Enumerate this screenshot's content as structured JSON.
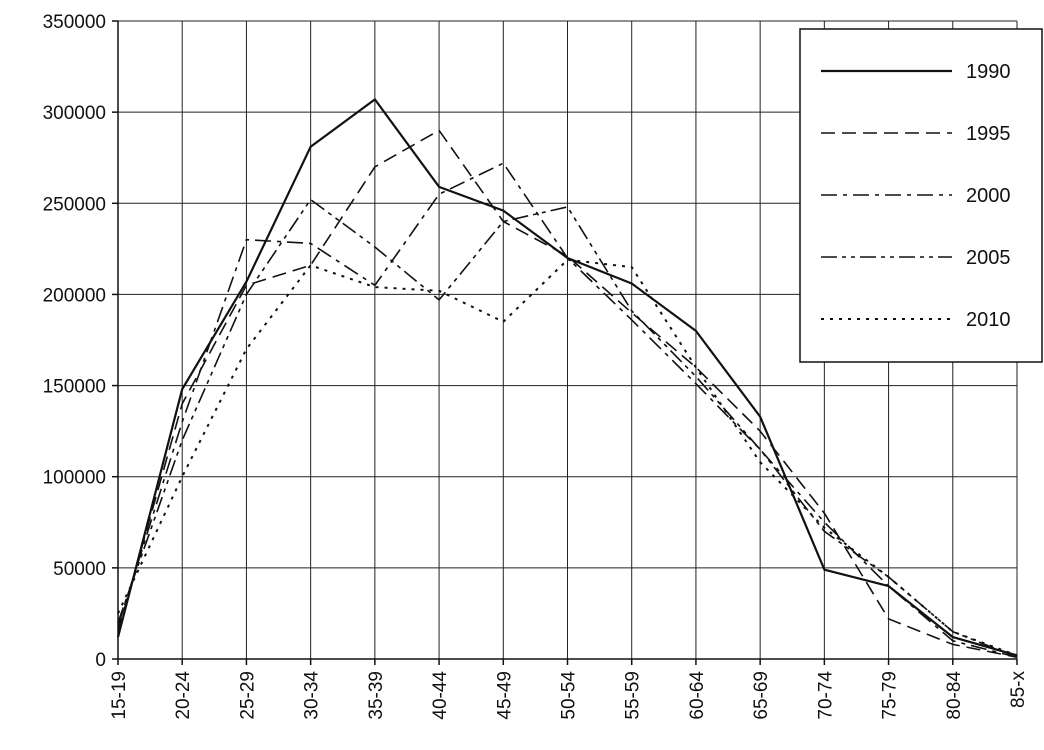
{
  "chart_data": {
    "type": "line",
    "title": "",
    "xlabel": "",
    "ylabel": "",
    "categories": [
      "15-19",
      "20-24",
      "25-29",
      "30-34",
      "35-39",
      "40-44",
      "45-49",
      "50-54",
      "55-59",
      "60-64",
      "65-69",
      "70-74",
      "75-79",
      "80-84",
      "85-x"
    ],
    "y_ticks": [
      "0",
      "50000",
      "100000",
      "150000",
      "200000",
      "250000",
      "300000",
      "350000"
    ],
    "ylim": [
      0,
      350000
    ],
    "grid": true,
    "legend_position": "top-right",
    "series": [
      {
        "name": "1990",
        "style": "solid",
        "values": [
          12000,
          148000,
          207000,
          281000,
          307000,
          259000,
          246000,
          220000,
          206000,
          180000,
          133000,
          49000,
          40000,
          12000,
          2000
        ]
      },
      {
        "name": "1995",
        "style": "dashed",
        "values": [
          15000,
          140000,
          205000,
          216000,
          270000,
          290000,
          240000,
          221000,
          190000,
          160000,
          125000,
          80000,
          22000,
          8000,
          1000
        ]
      },
      {
        "name": "2000",
        "style": "dashdot",
        "values": [
          18000,
          130000,
          230000,
          228000,
          205000,
          255000,
          272000,
          220000,
          186000,
          151000,
          115000,
          75000,
          40000,
          10000,
          1000
        ]
      },
      {
        "name": "2005",
        "style": "dashdotdot",
        "values": [
          20000,
          120000,
          200000,
          252000,
          226000,
          197000,
          240000,
          248000,
          191000,
          155000,
          115000,
          70000,
          45000,
          15000,
          1000
        ]
      },
      {
        "name": "2010",
        "style": "dotted",
        "values": [
          25000,
          100000,
          170000,
          216000,
          204000,
          202000,
          185000,
          219000,
          215000,
          160000,
          108000,
          72000,
          45000,
          15000,
          2000
        ]
      }
    ]
  }
}
